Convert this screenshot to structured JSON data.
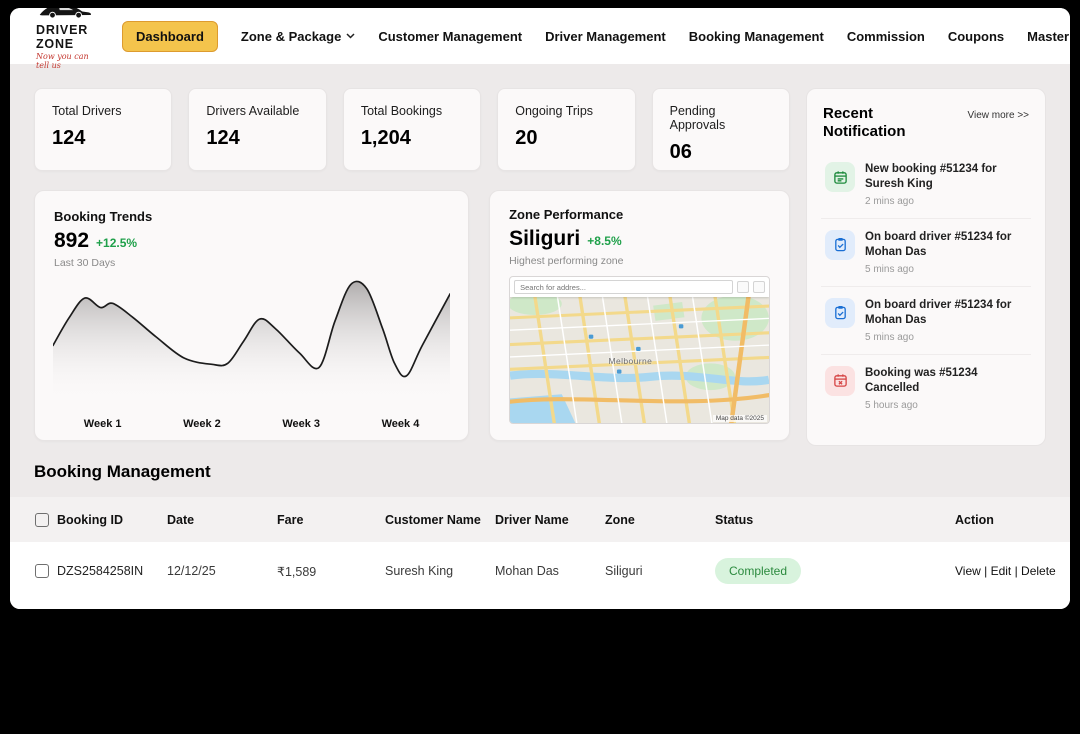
{
  "nav": {
    "brand": {
      "name": "DRIVER ZONE",
      "tagline": "Now you can tell us",
      "registered": "®"
    },
    "items": [
      {
        "label": "Dashboard",
        "active": true,
        "dropdown": false
      },
      {
        "label": "Zone & Package",
        "active": false,
        "dropdown": true
      },
      {
        "label": "Customer Management",
        "active": false,
        "dropdown": false
      },
      {
        "label": "Driver Management",
        "active": false,
        "dropdown": false
      },
      {
        "label": "Booking Management",
        "active": false,
        "dropdown": false
      },
      {
        "label": "Commission",
        "active": false,
        "dropdown": false
      },
      {
        "label": "Coupons",
        "active": false,
        "dropdown": false
      },
      {
        "label": "Master",
        "active": false,
        "dropdown": true
      }
    ]
  },
  "stats": [
    {
      "label": "Total Drivers",
      "value": "124"
    },
    {
      "label": "Drivers Available",
      "value": "124"
    },
    {
      "label": "Total Bookings",
      "value": "1,204"
    },
    {
      "label": "Ongoing Trips",
      "value": "20"
    },
    {
      "label": "Pending Approvals",
      "value": "06"
    }
  ],
  "notifications": {
    "title": "Recent Notification",
    "view_more": "View more >>",
    "items": [
      {
        "text": "New booking #51234 for Suresh King",
        "time": "2 mins ago",
        "icon": "booking-calendar-icon",
        "color": "green"
      },
      {
        "text": "On board driver #51234 for Mohan Das",
        "time": "5 mins ago",
        "icon": "onboard-clipboard-icon",
        "color": "blue"
      },
      {
        "text": "On board driver #51234 for Mohan Das",
        "time": "5 mins ago",
        "icon": "onboard-clipboard-icon",
        "color": "blue"
      },
      {
        "text": "Booking was #51234 Cancelled",
        "time": "5 hours ago",
        "icon": "cancelled-calendar-icon",
        "color": "red"
      }
    ]
  },
  "chart_data": {
    "type": "area",
    "title": "Booking Trends",
    "value": "892",
    "change": "+12.5%",
    "subtitle": "Last 30 Days",
    "x_tick_labels": [
      "Week 1",
      "Week 2",
      "Week 3",
      "Week 4"
    ],
    "ylim": [
      0,
      100
    ],
    "legend": false,
    "grid": false,
    "points": [
      [
        0,
        42
      ],
      [
        4,
        68
      ],
      [
        8,
        87
      ],
      [
        12,
        78
      ],
      [
        15,
        82
      ],
      [
        20,
        69
      ],
      [
        26,
        50
      ],
      [
        33,
        30
      ],
      [
        40,
        24
      ],
      [
        44,
        25
      ],
      [
        48,
        46
      ],
      [
        52,
        67
      ],
      [
        56,
        58
      ],
      [
        62,
        35
      ],
      [
        67,
        21
      ],
      [
        71,
        65
      ],
      [
        75,
        100
      ],
      [
        79,
        96
      ],
      [
        83,
        58
      ],
      [
        86,
        25
      ],
      [
        89,
        13
      ],
      [
        93,
        42
      ],
      [
        100,
        91
      ]
    ]
  },
  "zone_performance": {
    "title": "Zone Performance",
    "zone": "Siliguri",
    "change": "+8.5%",
    "subtitle": "Highest performing zone",
    "map": {
      "search_placeholder": "Search for addres...",
      "city_label": "Melbourne",
      "attribution": "Map data ©2025"
    }
  },
  "booking_management": {
    "title": "Booking Management",
    "columns": [
      "Booking ID",
      "Date",
      "Fare",
      "Customer Name",
      "Driver Name",
      "Zone",
      "Status",
      "Action"
    ],
    "rows": [
      {
        "booking_id": "DZS2584258IN",
        "date": "12/12/25",
        "fare": "₹1,589",
        "customer_name": "Suresh King",
        "driver_name": "Mohan Das",
        "zone": "Siliguri",
        "status": "Completed",
        "actions": "View | Edit | Delete"
      }
    ]
  },
  "colors": {
    "accent_yellow": "#f4c44c",
    "accent_yellow_border": "#dd9b2f",
    "positive_green": "#1fa04a",
    "badge_green_bg": "#d8f3dd",
    "badge_green_text": "#2b8a3e",
    "notif_green": "#1d8a3c",
    "notif_blue": "#1a6fd4",
    "notif_red": "#d64545"
  }
}
